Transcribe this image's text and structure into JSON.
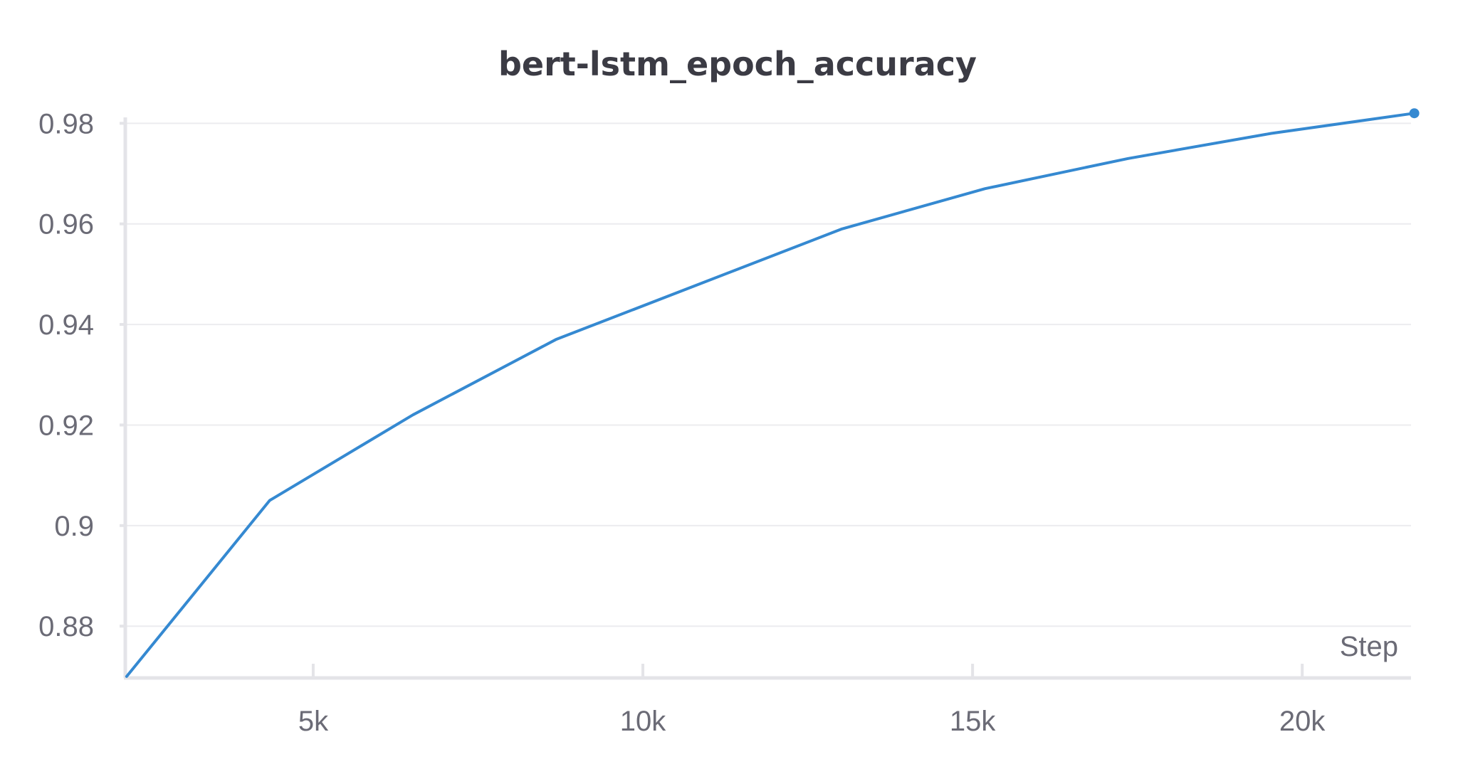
{
  "chart_data": {
    "type": "line",
    "title": "bert-lstm_epoch_accuracy",
    "xlabel": "Step",
    "ylabel": "",
    "x_ticks": [
      {
        "value": 5000,
        "label": "5k"
      },
      {
        "value": 10000,
        "label": "10k"
      },
      {
        "value": 15000,
        "label": "15k"
      },
      {
        "value": 20000,
        "label": "20k"
      }
    ],
    "y_ticks": [
      {
        "value": 0.88,
        "label": "0.88"
      },
      {
        "value": 0.9,
        "label": "0.9"
      },
      {
        "value": 0.92,
        "label": "0.92"
      },
      {
        "value": 0.94,
        "label": "0.94"
      },
      {
        "value": 0.96,
        "label": "0.96"
      },
      {
        "value": 0.98,
        "label": "0.98"
      }
    ],
    "xlim": [
      2150,
      21650
    ],
    "ylim": [
      0.8697,
      0.9833
    ],
    "grid": true,
    "series": [
      {
        "color": "#3589d1",
        "x": [
          2170,
          4340,
          6510,
          8680,
          10850,
          13020,
          15190,
          17360,
          19530,
          21700
        ],
        "y": [
          0.87,
          0.905,
          0.922,
          0.937,
          0.948,
          0.959,
          0.967,
          0.973,
          0.978,
          0.982
        ],
        "end_marker": true
      }
    ]
  }
}
